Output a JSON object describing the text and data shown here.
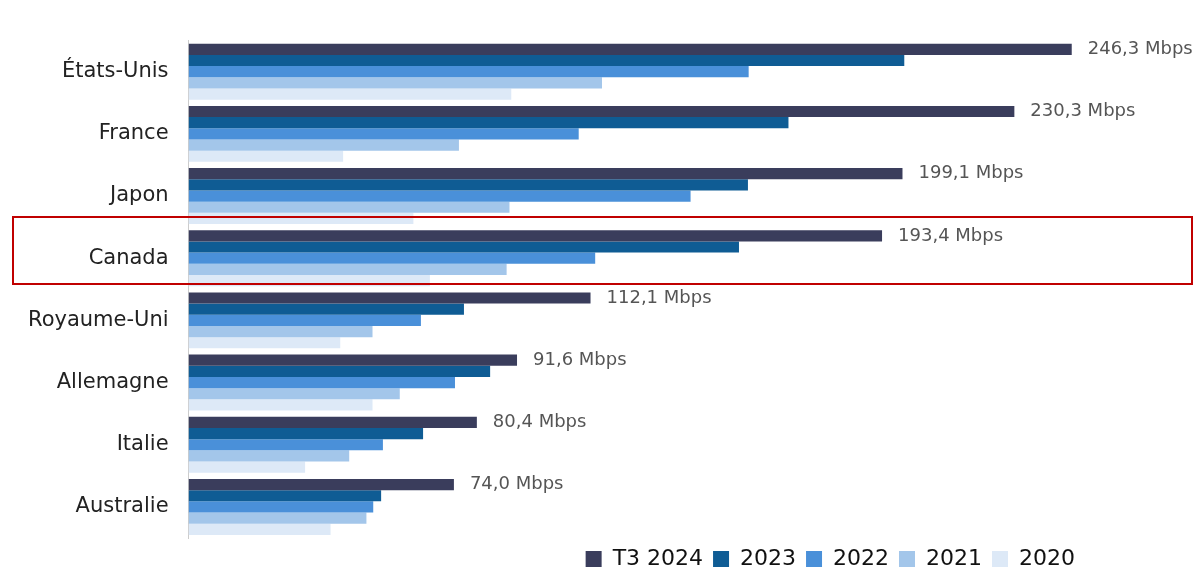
{
  "chart_data": {
    "type": "bar",
    "orientation": "horizontal",
    "categories": [
      "États-Unis",
      "France",
      "Japon",
      "Canada",
      "Royaume-Uni",
      "Allemagne",
      "Italie",
      "Australie"
    ],
    "series": [
      {
        "name": "T3 2024",
        "color": "#3a3d5c",
        "values": [
          246.3,
          230.3,
          199.1,
          193.4,
          112.1,
          91.6,
          80.4,
          74.0
        ],
        "value_labels": [
          "246,3 Mbps",
          "230,3 Mbps",
          "199,1 Mbps",
          "193,4 Mbps",
          "112,1 Mbps",
          "91,6 Mbps",
          "80,4 Mbps",
          "74,0 Mbps"
        ]
      },
      {
        "name": "2023",
        "color": "#0f5c94",
        "values": [
          199.6,
          167.3,
          156.0,
          153.5,
          76.8,
          84.1,
          65.4,
          53.7
        ]
      },
      {
        "name": "2022",
        "color": "#4a90d9",
        "values": [
          156.2,
          108.8,
          140.0,
          113.4,
          64.8,
          74.3,
          54.2,
          51.5
        ]
      },
      {
        "name": "2021",
        "color": "#a3c6ea",
        "values": [
          115.3,
          75.4,
          89.5,
          88.7,
          51.3,
          58.9,
          44.8,
          49.6
        ]
      },
      {
        "name": "2020",
        "color": "#dde9f7",
        "values": [
          90.0,
          43.1,
          62.7,
          67.3,
          42.3,
          51.3,
          32.5,
          39.6
        ]
      }
    ],
    "tick_labels": "y",
    "grid": false,
    "legend": "bottom right"
  }
}
